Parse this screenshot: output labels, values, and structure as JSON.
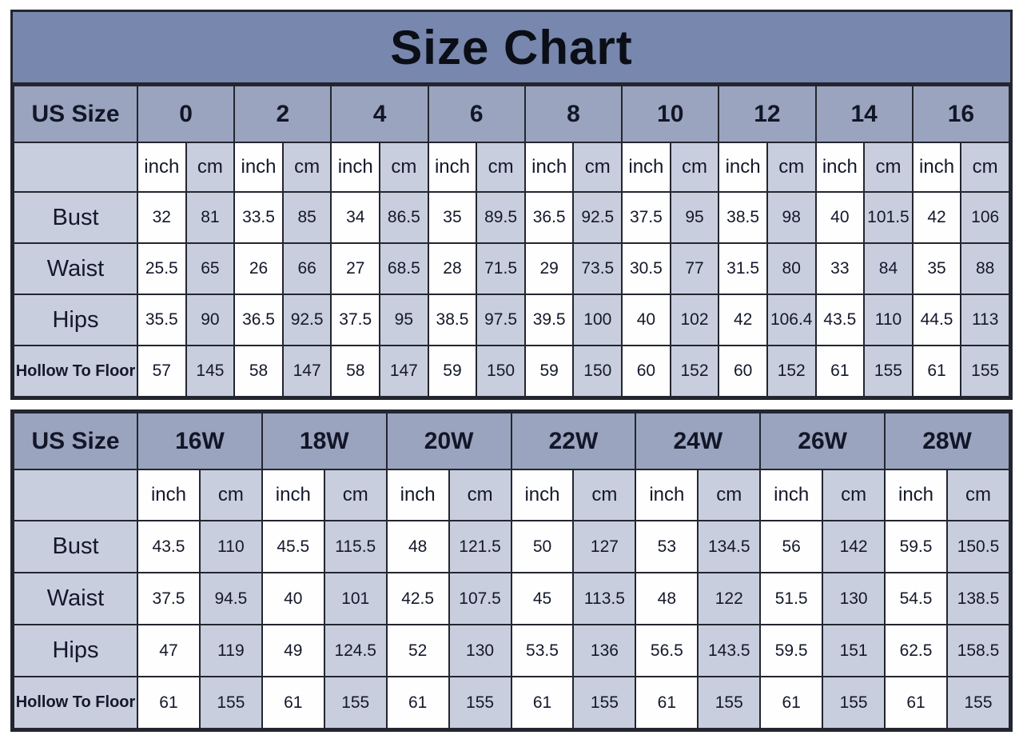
{
  "colors": {
    "title_bg": "#7787ad",
    "header_bg": "#9aa4bf",
    "shade_bg": "#c8cede",
    "white_bg": "#fefefe",
    "border": "#23262f",
    "text": "#14182a"
  },
  "chart_data": [
    {
      "type": "table",
      "title": "Size Chart",
      "corner_label": "US Size",
      "unit_headers": [
        "inch",
        "cm"
      ],
      "sizes": [
        "0",
        "2",
        "4",
        "6",
        "8",
        "10",
        "12",
        "14",
        "16"
      ],
      "measurements": [
        {
          "label": "Bust",
          "inch": [
            32,
            33.5,
            34,
            35,
            36.5,
            37.5,
            38.5,
            40,
            42
          ],
          "cm": [
            81,
            85,
            86.5,
            89.5,
            92.5,
            95,
            98,
            101.5,
            106
          ]
        },
        {
          "label": "Waist",
          "inch": [
            25.5,
            26,
            27,
            28,
            29,
            30.5,
            31.5,
            33,
            35
          ],
          "cm": [
            65,
            66,
            68.5,
            71.5,
            73.5,
            77,
            80,
            84,
            88
          ]
        },
        {
          "label": "Hips",
          "inch": [
            35.5,
            36.5,
            37.5,
            38.5,
            39.5,
            40,
            42,
            43.5,
            44.5
          ],
          "cm": [
            90,
            92.5,
            95,
            97.5,
            100,
            102,
            106.4,
            110,
            113
          ]
        },
        {
          "label": "Hollow To Floor",
          "inch": [
            57,
            58,
            58,
            59,
            59,
            60,
            60,
            61,
            61
          ],
          "cm": [
            145,
            147,
            147,
            150,
            150,
            152,
            152,
            155,
            155
          ]
        }
      ]
    },
    {
      "type": "table",
      "title": "",
      "corner_label": "US Size",
      "unit_headers": [
        "inch",
        "cm"
      ],
      "sizes": [
        "16W",
        "18W",
        "20W",
        "22W",
        "24W",
        "26W",
        "28W"
      ],
      "measurements": [
        {
          "label": "Bust",
          "inch": [
            43.5,
            45.5,
            48,
            50,
            53,
            56,
            59.5
          ],
          "cm": [
            110,
            115.5,
            121.5,
            127,
            134.5,
            142,
            150.5
          ]
        },
        {
          "label": "Waist",
          "inch": [
            37.5,
            40,
            42.5,
            45,
            48,
            51.5,
            54.5
          ],
          "cm": [
            94.5,
            101,
            107.5,
            113.5,
            122,
            130,
            138.5
          ]
        },
        {
          "label": "Hips",
          "inch": [
            47,
            49,
            52,
            53.5,
            56.5,
            59.5,
            62.5
          ],
          "cm": [
            119,
            124.5,
            130,
            136,
            143.5,
            151,
            158.5
          ]
        },
        {
          "label": "Hollow To Floor",
          "inch": [
            61,
            61,
            61,
            61,
            61,
            61,
            61
          ],
          "cm": [
            155,
            155,
            155,
            155,
            155,
            155,
            155
          ]
        }
      ]
    }
  ]
}
